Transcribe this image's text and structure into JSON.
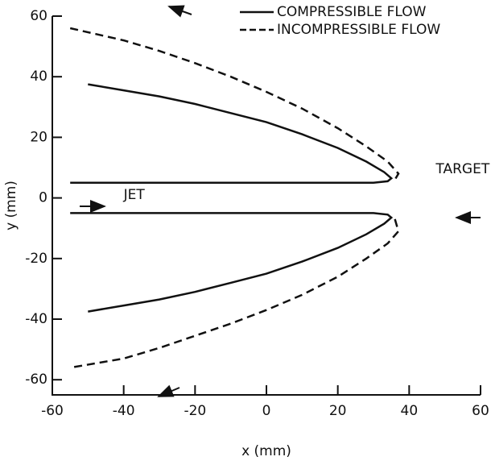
{
  "chart_data": {
    "type": "line",
    "xlabel": "x (mm)",
    "ylabel": "y (mm)",
    "xlim": [
      -60,
      60
    ],
    "ylim": [
      -65,
      60
    ],
    "xticks": [
      -60,
      -40,
      -20,
      0,
      20,
      40,
      60
    ],
    "yticks": [
      -60,
      -40,
      -20,
      0,
      20,
      40,
      60
    ],
    "legend": "upper right",
    "annotations": [
      "JET",
      "TARGET"
    ],
    "series": [
      {
        "name": "COMPRESSIBLE FLOW",
        "color": "#111111",
        "dash": "solid",
        "x": [
          -50,
          -40,
          -30,
          -20,
          -10,
          0,
          10,
          20,
          28,
          33,
          35,
          34,
          30,
          0,
          -30,
          -55,
          null,
          -55,
          -30,
          0,
          30,
          34,
          35,
          33,
          28,
          20,
          10,
          0,
          -10,
          -20,
          -30,
          -40,
          -50
        ],
        "y": [
          37.5,
          35.5,
          33.5,
          31,
          28,
          25,
          21,
          16.5,
          12,
          8.5,
          6.5,
          5.5,
          5,
          5,
          5,
          5,
          null,
          -5,
          -5,
          -5,
          -5,
          -5.5,
          -6.5,
          -8.5,
          -12,
          -16.5,
          -21,
          -25,
          -28,
          -31,
          -33.5,
          -35.5,
          -37.5
        ]
      },
      {
        "name": "INCOMPRESSIBLE FLOW",
        "color": "#111111",
        "dash": "dashed",
        "x": [
          -55,
          -40,
          -30,
          -20,
          -10,
          0,
          10,
          20,
          28,
          34,
          37,
          36,
          null,
          36,
          37,
          34,
          28,
          20,
          10,
          0,
          -10,
          -20,
          -30,
          -40,
          -55
        ],
        "y": [
          56,
          52,
          48.5,
          44.5,
          40,
          35,
          29.5,
          23,
          17,
          12,
          8,
          6,
          null,
          -7,
          -11,
          -15,
          -20,
          -26,
          -32,
          -37,
          -41.5,
          -45.5,
          -49.5,
          -53,
          -56
        ]
      }
    ]
  }
}
